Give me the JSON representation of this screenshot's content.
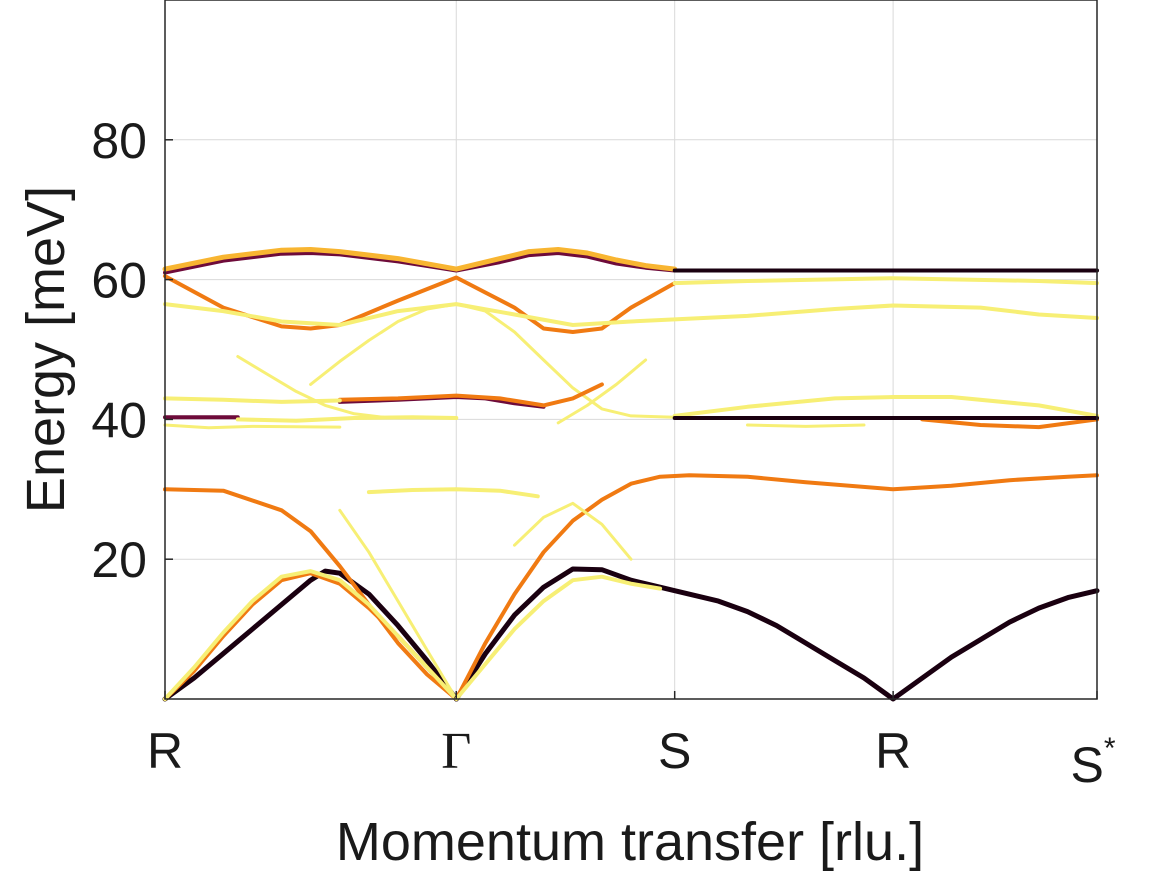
{
  "chart_data": {
    "type": "line",
    "title": "",
    "xlabel": "Momentum transfer [rlu.]",
    "ylabel": "Energy [meV]",
    "ylim": [
      0,
      100
    ],
    "x_range": [
      0,
      3.2
    ],
    "grid": true,
    "legend": "none",
    "y_ticks": [
      20,
      40,
      60,
      80
    ],
    "x_ticks": [
      {
        "value": 0.0,
        "label": "R"
      },
      {
        "value": 1.0,
        "label": "Γ"
      },
      {
        "value": 1.75,
        "label": "S"
      },
      {
        "value": 2.5,
        "label": "R"
      },
      {
        "value": 3.2,
        "label": "S",
        "sup": "*"
      }
    ],
    "colors": {
      "dark": "#1a0010",
      "maroon": "#6e0b3a",
      "orange": "#f07a12",
      "amber": "#f8b531",
      "yellow": "#f7ef75"
    },
    "series": [
      {
        "color": "dark",
        "width": 5,
        "x": [
          0,
          0.1,
          0.2,
          0.3,
          0.4,
          0.5,
          0.55,
          0.6,
          0.7,
          0.8,
          0.9,
          1.0
        ],
        "y": [
          0,
          3,
          6.5,
          10,
          13.5,
          17,
          18.3,
          18,
          15,
          10.5,
          5.5,
          0
        ]
      },
      {
        "color": "orange",
        "width": 4,
        "x": [
          0,
          0.1,
          0.2,
          0.3,
          0.4,
          0.5,
          0.6,
          0.7,
          0.8,
          0.9,
          1.0
        ],
        "y": [
          0,
          4,
          9,
          13.5,
          17,
          18,
          16.5,
          13,
          9,
          4.5,
          0
        ]
      },
      {
        "color": "orange",
        "width": 4,
        "x": [
          0,
          0.2,
          0.4,
          0.5,
          0.6,
          0.7,
          0.8,
          0.9,
          1.0
        ],
        "y": [
          30,
          29.8,
          27,
          24,
          19,
          13.5,
          8,
          3.5,
          0
        ]
      },
      {
        "color": "yellow",
        "width": 4,
        "x": [
          0,
          0.1,
          0.2,
          0.3,
          0.4,
          0.5,
          0.6,
          0.7,
          0.8,
          0.9,
          1.0
        ],
        "y": [
          0,
          4.5,
          9.5,
          14,
          17.5,
          18.3,
          17,
          13.5,
          9,
          4.5,
          0
        ]
      },
      {
        "color": "yellow",
        "width": 3,
        "x": [
          0.6,
          0.7,
          0.8,
          0.9,
          1.0
        ],
        "y": [
          27,
          21,
          14,
          7,
          0
        ]
      },
      {
        "color": "yellow",
        "width": 4,
        "x": [
          0.7,
          0.85,
          1.0,
          1.15,
          1.28
        ],
        "y": [
          29.6,
          29.9,
          30,
          29.8,
          29
        ]
      },
      {
        "color": "dark",
        "width": 5,
        "x": [
          1.0,
          1.1,
          1.2,
          1.3,
          1.4,
          1.5,
          1.6,
          1.75,
          1.9,
          2.0,
          2.1,
          2.2,
          2.3,
          2.4,
          2.5,
          2.6,
          2.7,
          2.8,
          2.9,
          3.0,
          3.1,
          3.2
        ],
        "y": [
          0,
          6.5,
          12,
          16,
          18.6,
          18.5,
          17,
          15.5,
          14,
          12.5,
          10.5,
          8,
          5.5,
          3,
          0,
          3,
          6,
          8.5,
          11,
          13,
          14.5,
          15.5
        ]
      },
      {
        "color": "orange",
        "width": 4,
        "x": [
          1.0,
          1.1,
          1.2,
          1.3,
          1.4,
          1.5,
          1.6,
          1.7,
          1.8,
          2.0,
          2.2,
          2.5,
          2.7,
          2.9,
          3.1,
          3.2
        ],
        "y": [
          0,
          8,
          15,
          21,
          25.5,
          28.5,
          30.8,
          31.8,
          32,
          31.8,
          31,
          30,
          30.5,
          31.3,
          31.8,
          32
        ]
      },
      {
        "color": "yellow",
        "width": 4,
        "x": [
          1.0,
          1.1,
          1.2,
          1.3,
          1.4,
          1.5,
          1.6,
          1.7
        ],
        "y": [
          0,
          5,
          10,
          14,
          17,
          17.5,
          16.5,
          15.8
        ]
      },
      {
        "color": "yellow",
        "width": 3,
        "x": [
          1.2,
          1.3,
          1.4,
          1.5,
          1.6
        ],
        "y": [
          22,
          26,
          28,
          25,
          20
        ]
      },
      {
        "color": "maroon",
        "width": 4,
        "x": [
          0,
          0.2,
          0.4,
          0.5,
          0.6,
          0.8,
          1.0,
          1.15,
          1.25,
          1.35,
          1.45,
          1.55,
          1.65,
          1.75
        ],
        "y": [
          61,
          62.7,
          63.7,
          63.8,
          63.6,
          62.6,
          61.3,
          62.5,
          63.5,
          63.8,
          63.3,
          62.3,
          61.7,
          61.3
        ]
      },
      {
        "color": "amber",
        "width": 5,
        "x": [
          0,
          0.2,
          0.4,
          0.5,
          0.6,
          0.8,
          1.0,
          1.15,
          1.25,
          1.35,
          1.45,
          1.55,
          1.65,
          1.75
        ],
        "y": [
          61.5,
          63.2,
          64.2,
          64.3,
          64,
          63,
          61.5,
          63,
          64,
          64.3,
          63.8,
          62.8,
          62,
          61.5
        ]
      },
      {
        "color": "dark",
        "width": 4,
        "x": [
          1.75,
          2.5,
          3.2
        ],
        "y": [
          61.3,
          61.3,
          61.3
        ]
      },
      {
        "color": "orange",
        "width": 4,
        "x": [
          0,
          0.2,
          0.4,
          0.5,
          0.6,
          0.8,
          1.0,
          1.2,
          1.3,
          1.4,
          1.5,
          1.6,
          1.75
        ],
        "y": [
          60.5,
          56,
          53.3,
          53,
          53.5,
          57,
          60.3,
          56,
          53,
          52.5,
          53,
          56,
          59.5
        ]
      },
      {
        "color": "yellow",
        "width": 4,
        "x": [
          0,
          0.2,
          0.4,
          0.6,
          0.8,
          1.0,
          1.2,
          1.4,
          1.6,
          1.75,
          2.0,
          2.3,
          2.5,
          2.8,
          3.0,
          3.2
        ],
        "y": [
          56.5,
          55.5,
          54,
          53.5,
          55.5,
          56.5,
          55,
          53.5,
          54,
          54.3,
          54.8,
          55.8,
          56.3,
          56,
          55,
          54.5
        ]
      },
      {
        "color": "yellow",
        "width": 4,
        "x": [
          1.75,
          2.0,
          2.5,
          3.0,
          3.2
        ],
        "y": [
          59.5,
          59.8,
          60.2,
          59.8,
          59.5
        ]
      },
      {
        "color": "yellow",
        "width": 3,
        "x": [
          0.5,
          0.6,
          0.7,
          0.8,
          0.9,
          1.0,
          1.1,
          1.2,
          1.3,
          1.4,
          1.5,
          1.6,
          1.75
        ],
        "y": [
          45,
          48.3,
          51.3,
          54,
          55.8,
          56.5,
          55.5,
          52.5,
          48.5,
          44.5,
          41.5,
          40.5,
          40.3
        ]
      },
      {
        "color": "yellow",
        "width": 3,
        "x": [
          0.25,
          0.35,
          0.45,
          0.55,
          0.65,
          0.75
        ],
        "y": [
          49,
          46.5,
          44,
          42,
          40.8,
          40.3
        ]
      },
      {
        "color": "yellow",
        "width": 3,
        "x": [
          1.35,
          1.45,
          1.55,
          1.65
        ],
        "y": [
          39.5,
          42,
          45,
          48.5
        ]
      },
      {
        "color": "maroon",
        "width": 4,
        "x": [
          0.6,
          0.8,
          1.0,
          1.1,
          1.2,
          1.3
        ],
        "y": [
          42.5,
          42.8,
          43.2,
          43,
          42.3,
          41.8
        ]
      },
      {
        "color": "orange",
        "width": 4,
        "x": [
          0.6,
          0.8,
          1.0,
          1.15,
          1.3,
          1.4,
          1.5
        ],
        "y": [
          42.8,
          43,
          43.4,
          43,
          42,
          43,
          45
        ]
      },
      {
        "color": "yellow",
        "width": 4,
        "x": [
          0,
          0.2,
          0.4,
          0.6
        ],
        "y": [
          43,
          42.8,
          42.5,
          42.7
        ]
      },
      {
        "color": "yellow",
        "width": 4,
        "x": [
          1.75,
          2.0,
          2.3,
          2.5,
          2.7,
          3.0,
          3.2
        ],
        "y": [
          40.5,
          41.8,
          43,
          43.2,
          43.2,
          42,
          40.5
        ]
      },
      {
        "color": "orange",
        "width": 4,
        "x": [
          2.6,
          2.8,
          3.0,
          3.2
        ],
        "y": [
          40,
          39.2,
          38.9,
          40
        ]
      },
      {
        "color": "dark",
        "width": 4,
        "x": [
          1.75,
          2.0,
          2.5,
          3.0,
          3.2
        ],
        "y": [
          40.2,
          40.2,
          40.2,
          40.2,
          40.2
        ]
      },
      {
        "color": "maroon",
        "width": 4,
        "x": [
          0,
          0.1,
          0.2,
          0.25
        ],
        "y": [
          40.3,
          40.3,
          40.3,
          40.3
        ]
      },
      {
        "color": "yellow",
        "width": 4,
        "x": [
          0.25,
          0.45,
          0.65,
          0.85,
          1.0
        ],
        "y": [
          40,
          39.8,
          40.2,
          40.3,
          40.2
        ]
      },
      {
        "color": "yellow",
        "width": 3,
        "x": [
          0,
          0.15,
          0.3,
          0.6
        ],
        "y": [
          39.2,
          38.8,
          39,
          38.9
        ]
      },
      {
        "color": "yellow",
        "width": 3,
        "x": [
          2.0,
          2.2,
          2.4
        ],
        "y": [
          39.2,
          39,
          39.2
        ]
      }
    ]
  }
}
